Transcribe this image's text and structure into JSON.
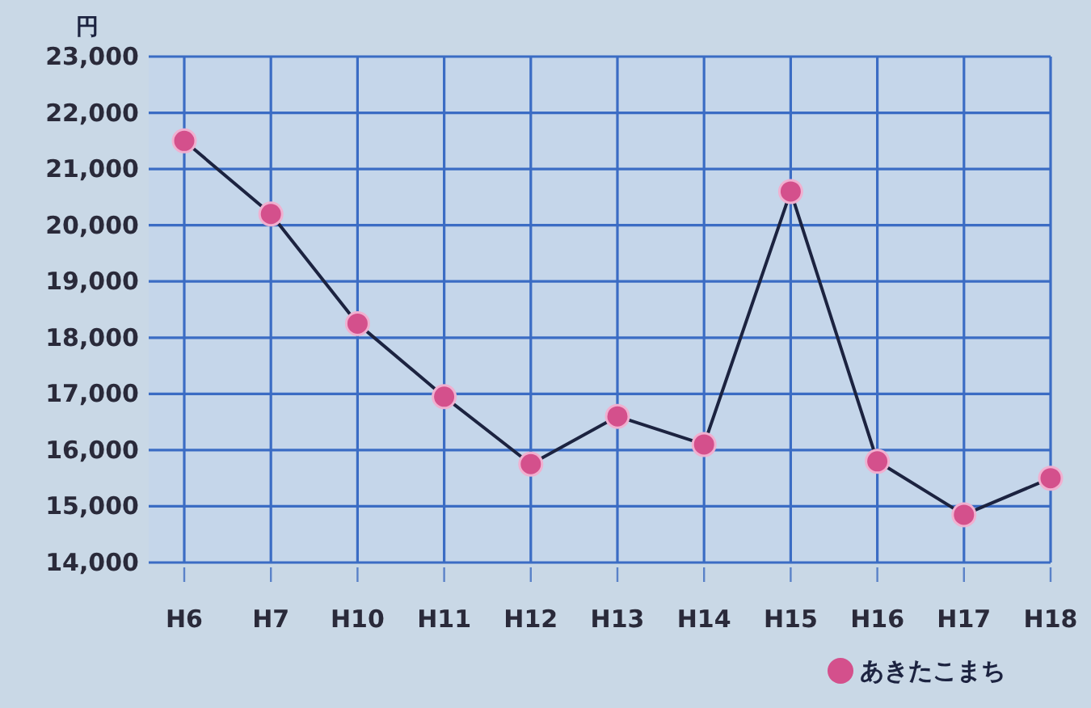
{
  "chart_data": {
    "type": "line",
    "ylabel": "円",
    "categories": [
      "H6",
      "H7",
      "H10",
      "H11",
      "H12",
      "H13",
      "H14",
      "H15",
      "H16",
      "H17",
      "H18"
    ],
    "series": [
      {
        "name": "あきたこまち",
        "color": "#d4508c",
        "values": [
          21500,
          20200,
          18250,
          16950,
          15750,
          16600,
          16100,
          20600,
          15800,
          14850,
          15500
        ]
      }
    ],
    "ylim": [
      14000,
      23000
    ],
    "yticks": [
      {
        "value": 14000,
        "label": "14,000"
      },
      {
        "value": 15000,
        "label": "15,000"
      },
      {
        "value": 16000,
        "label": "16,000"
      },
      {
        "value": 17000,
        "label": "17,000"
      },
      {
        "value": 18000,
        "label": "18,000"
      },
      {
        "value": 19000,
        "label": "19,000"
      },
      {
        "value": 20000,
        "label": "20,000"
      },
      {
        "value": 21000,
        "label": "21,000"
      },
      {
        "value": 22000,
        "label": "22,000"
      },
      {
        "value": 23000,
        "label": "23,000"
      }
    ],
    "grid": true,
    "legend": "bottom right",
    "marker": "circle",
    "line_style": "solid"
  }
}
